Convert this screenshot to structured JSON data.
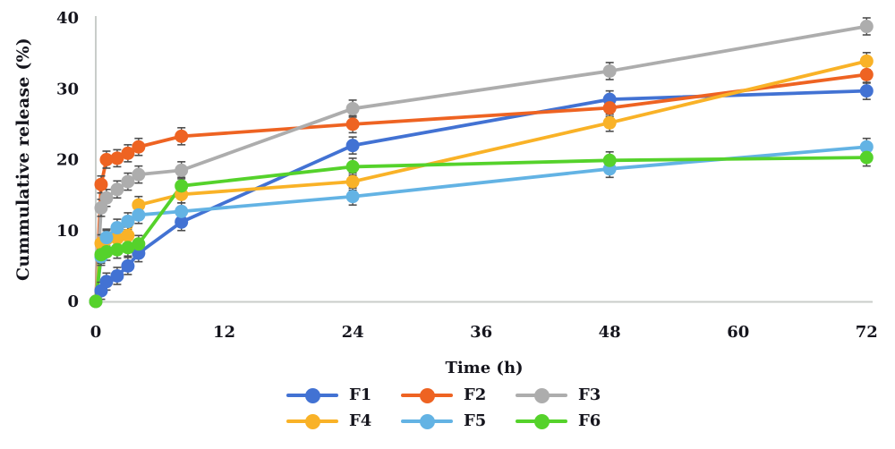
{
  "figure": {
    "background": "#ffffff",
    "text_color": "#15151d",
    "axis_line_color": "#c9cdca",
    "error_bar_color": "#4d4d4d"
  },
  "chart_data": {
    "type": "line",
    "title": "",
    "xlabel": "Time (h)",
    "ylabel": "Cummulative release (%)",
    "xlim": [
      0,
      72
    ],
    "ylim": [
      0,
      40
    ],
    "x_ticks": [
      0,
      12,
      24,
      36,
      48,
      60,
      72
    ],
    "y_ticks": [
      0,
      10,
      20,
      30,
      40
    ],
    "grid": false,
    "legend_position": "bottom",
    "marker": "circle",
    "error_bar": 1.2,
    "x": [
      0,
      0.5,
      1,
      2,
      3,
      4,
      8,
      24,
      48,
      72
    ],
    "series": [
      {
        "name": "F1",
        "color": "#4272d3",
        "values": [
          0,
          1.5,
          2.8,
          3.6,
          5.0,
          6.8,
          11.2,
          22.0,
          28.5,
          29.7
        ]
      },
      {
        "name": "F2",
        "color": "#ee6322",
        "values": [
          0,
          16.5,
          20.0,
          20.2,
          20.9,
          21.8,
          23.3,
          25.0,
          27.3,
          32.0
        ]
      },
      {
        "name": "F3",
        "color": "#adadad",
        "values": [
          0,
          13.2,
          14.6,
          15.8,
          16.9,
          17.9,
          18.5,
          27.2,
          32.5,
          38.8
        ]
      },
      {
        "name": "F4",
        "color": "#f9b227",
        "values": [
          0,
          8.2,
          8.8,
          8.9,
          9.3,
          13.6,
          15.1,
          16.9,
          25.2,
          33.9
        ]
      },
      {
        "name": "F5",
        "color": "#63b3e4",
        "values": [
          0,
          6.3,
          9.0,
          10.4,
          11.3,
          12.2,
          12.7,
          14.8,
          18.7,
          21.8
        ]
      },
      {
        "name": "F6",
        "color": "#55d22b",
        "values": [
          0,
          6.6,
          7.0,
          7.3,
          7.6,
          8.1,
          16.3,
          19.0,
          19.9,
          20.3
        ]
      }
    ]
  }
}
